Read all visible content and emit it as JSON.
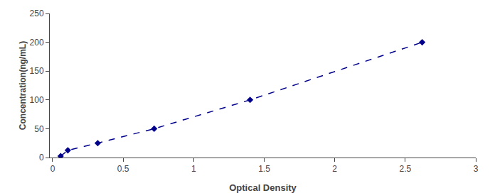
{
  "chart_data": {
    "type": "line",
    "x": [
      0.057,
      0.108,
      0.32,
      0.72,
      1.4,
      2.62
    ],
    "values": [
      2.5,
      12.5,
      25,
      50,
      100,
      200
    ],
    "color": "#00008B",
    "marker": "diamond",
    "line_style": "dashed",
    "xlabel": "Optical Density",
    "ylabel": "Concentration(ng/mL)",
    "xlim": [
      -0.02,
      3.0
    ],
    "ylim": [
      0,
      250
    ],
    "xticks": [
      0,
      0.5,
      1,
      1.5,
      2,
      2.5,
      3
    ],
    "yticks": [
      0,
      50,
      100,
      150,
      200,
      250
    ],
    "grid": false
  }
}
